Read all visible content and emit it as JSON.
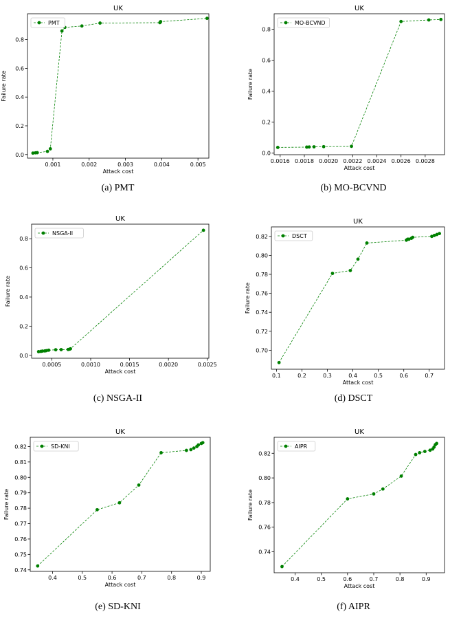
{
  "chart_data": [
    {
      "id": "a",
      "type": "line",
      "caption": "(a)  PMT",
      "title": "UK",
      "xlabel": "Attack cost",
      "ylabel": "Failure rate",
      "legend": "PMT",
      "legend_placement": "top-left",
      "color": "#008000",
      "xlim": [
        0.0003,
        0.0053
      ],
      "ylim": [
        -0.025,
        0.98
      ],
      "xticks": [
        0.001,
        0.002,
        0.003,
        0.004,
        0.005
      ],
      "xtick_labels": [
        "0.001",
        "0.002",
        "0.003",
        "0.004",
        "0.005"
      ],
      "yticks": [
        0.0,
        0.2,
        0.4,
        0.6,
        0.8
      ],
      "ytick_labels": [
        "0.0",
        "0.2",
        "0.4",
        "0.6",
        "0.8"
      ],
      "x": [
        0.00045,
        0.00052,
        0.00057,
        0.00085,
        0.00093,
        0.00125,
        0.00133,
        0.0018,
        0.0023,
        0.00395,
        0.00397,
        0.00525
      ],
      "y": [
        0.01,
        0.012,
        0.013,
        0.022,
        0.04,
        0.86,
        0.885,
        0.895,
        0.915,
        0.918,
        0.925,
        0.948
      ]
    },
    {
      "id": "b",
      "type": "line",
      "caption": "(b)  MO-BCVND",
      "title": "UK",
      "xlabel": "Attack cost",
      "ylabel": "Failure rate",
      "legend": "MO-BCVND",
      "legend_placement": "top-left",
      "color": "#008000",
      "xlim": [
        0.00155,
        0.00296
      ],
      "ylim": [
        -0.01,
        0.9
      ],
      "xticks": [
        0.0016,
        0.0018,
        0.002,
        0.0022,
        0.0024,
        0.0026,
        0.0028
      ],
      "xtick_labels": [
        "0.0016",
        "0.0018",
        "0.0020",
        "0.0022",
        "0.0024",
        "0.0026",
        "0.0028"
      ],
      "yticks": [
        0.0,
        0.2,
        0.4,
        0.6,
        0.8
      ],
      "ytick_labels": [
        "0.0",
        "0.2",
        "0.4",
        "0.6",
        "0.8"
      ],
      "x": [
        0.00158,
        0.00182,
        0.00184,
        0.00188,
        0.00196,
        0.00219,
        0.0026,
        0.00283,
        0.00293
      ],
      "y": [
        0.037,
        0.039,
        0.04,
        0.041,
        0.042,
        0.044,
        0.85,
        0.86,
        0.863
      ]
    },
    {
      "id": "c",
      "type": "line",
      "caption": "(c)  NSGA-II",
      "title": "UK",
      "xlabel": "Attack cost",
      "ylabel": "Failure rate",
      "legend": "NSGA-II",
      "legend_placement": "top-left",
      "color": "#008000",
      "xlim": [
        0.00024,
        0.00252
      ],
      "ylim": [
        -0.02,
        0.9
      ],
      "xticks": [
        0.0005,
        0.001,
        0.0015,
        0.002,
        0.0025
      ],
      "xtick_labels": [
        "0.0005",
        "0.0010",
        "0.0015",
        "0.0020",
        "0.0025"
      ],
      "yticks": [
        0.0,
        0.2,
        0.4,
        0.6,
        0.8
      ],
      "ytick_labels": [
        "0.0",
        "0.2",
        "0.4",
        "0.6",
        "0.8"
      ],
      "x": [
        0.00033,
        0.00036,
        0.00038,
        0.00041,
        0.00043,
        0.00046,
        0.00055,
        0.00062,
        0.00071,
        0.00073,
        0.00074,
        0.00245
      ],
      "y": [
        0.025,
        0.027,
        0.029,
        0.03,
        0.032,
        0.035,
        0.038,
        0.039,
        0.04,
        0.042,
        0.045,
        0.858
      ]
    },
    {
      "id": "d",
      "type": "line",
      "caption": "(d)  DSCT",
      "title": "UK",
      "xlabel": "Attack cost",
      "ylabel": "Failure rate",
      "legend": "DSCT",
      "legend_placement": "top-left",
      "color": "#008000",
      "xlim": [
        0.08,
        0.76
      ],
      "ylim": [
        0.68,
        0.83
      ],
      "xticks": [
        0.1,
        0.2,
        0.3,
        0.4,
        0.5,
        0.6,
        0.7
      ],
      "xtick_labels": [
        "0.1",
        "0.2",
        "0.3",
        "0.4",
        "0.5",
        "0.6",
        "0.7"
      ],
      "yticks": [
        0.7,
        0.72,
        0.74,
        0.76,
        0.78,
        0.8,
        0.82
      ],
      "ytick_labels": [
        "0.70",
        "0.72",
        "0.74",
        "0.76",
        "0.78",
        "0.80",
        "0.82"
      ],
      "x": [
        0.11,
        0.32,
        0.39,
        0.42,
        0.455,
        0.61,
        0.615,
        0.62,
        0.63,
        0.635,
        0.71,
        0.72,
        0.73,
        0.74
      ],
      "y": [
        0.687,
        0.781,
        0.784,
        0.796,
        0.813,
        0.816,
        0.817,
        0.817,
        0.818,
        0.819,
        0.82,
        0.821,
        0.822,
        0.823
      ]
    },
    {
      "id": "e",
      "type": "line",
      "caption": "(e)  SD-KNI",
      "title": "UK",
      "xlabel": "Attack cost",
      "ylabel": "Failure rate",
      "legend": "SD-KNI",
      "legend_placement": "top-left",
      "color": "#008000",
      "xlim": [
        0.325,
        0.93
      ],
      "ylim": [
        0.739,
        0.826
      ],
      "xticks": [
        0.4,
        0.5,
        0.6,
        0.7,
        0.8,
        0.9
      ],
      "xtick_labels": [
        "0.4",
        "0.5",
        "0.6",
        "0.7",
        "0.8",
        "0.9"
      ],
      "yticks": [
        0.74,
        0.75,
        0.76,
        0.77,
        0.78,
        0.79,
        0.8,
        0.81,
        0.82
      ],
      "ytick_labels": [
        "0.74",
        "0.75",
        "0.76",
        "0.77",
        "0.78",
        "0.79",
        "0.80",
        "0.81",
        "0.82"
      ],
      "x": [
        0.35,
        0.55,
        0.625,
        0.69,
        0.765,
        0.85,
        0.865,
        0.875,
        0.885,
        0.89,
        0.9,
        0.905
      ],
      "y": [
        0.7425,
        0.779,
        0.7835,
        0.795,
        0.816,
        0.8175,
        0.818,
        0.819,
        0.82,
        0.821,
        0.822,
        0.8225
      ]
    },
    {
      "id": "f",
      "type": "line",
      "caption": "(f)  AIPR",
      "title": "UK",
      "xlabel": "Attack cost",
      "ylabel": "Failure rate",
      "legend": "AIPR",
      "legend_placement": "top-left",
      "color": "#008000",
      "xlim": [
        0.32,
        0.97
      ],
      "ylim": [
        0.723,
        0.833
      ],
      "xticks": [
        0.4,
        0.5,
        0.6,
        0.7,
        0.8,
        0.9
      ],
      "xtick_labels": [
        "0.4",
        "0.5",
        "0.6",
        "0.7",
        "0.8",
        "0.9"
      ],
      "yticks": [
        0.74,
        0.76,
        0.78,
        0.8,
        0.82
      ],
      "ytick_labels": [
        "0.74",
        "0.76",
        "0.78",
        "0.80",
        "0.82"
      ],
      "x": [
        0.35,
        0.6,
        0.7,
        0.735,
        0.805,
        0.86,
        0.875,
        0.895,
        0.915,
        0.925,
        0.93,
        0.935,
        0.94
      ],
      "y": [
        0.728,
        0.783,
        0.787,
        0.791,
        0.8015,
        0.819,
        0.8205,
        0.8215,
        0.8225,
        0.8235,
        0.825,
        0.827,
        0.828
      ]
    }
  ]
}
